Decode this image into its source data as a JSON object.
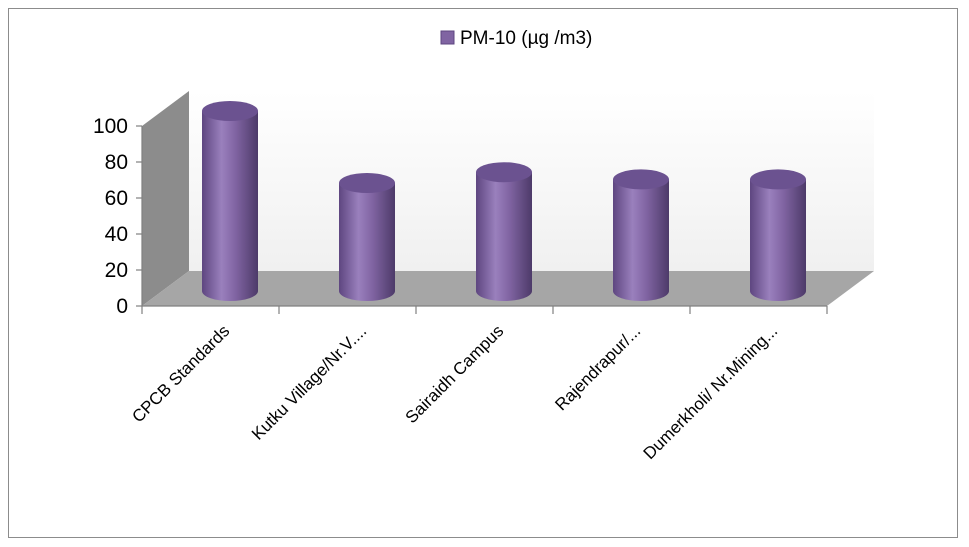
{
  "chart_data": {
    "type": "bar",
    "style": "3d-cylinder",
    "categories": [
      "CPCB Standards",
      "Kutku Village/Nr.V....",
      "Sairaidh Campus",
      "Rajendrapur/...",
      "Dumerkholi/ Nr.Mining..."
    ],
    "series": [
      {
        "name": "PM-10 (µg /m3)",
        "values": [
          100,
          60,
          66,
          62,
          62
        ],
        "color": "#8064A2"
      }
    ],
    "ylim": [
      0,
      100
    ],
    "yticks": [
      0,
      20,
      40,
      60,
      80,
      100
    ],
    "legend_position": "top-center",
    "grid": false
  }
}
